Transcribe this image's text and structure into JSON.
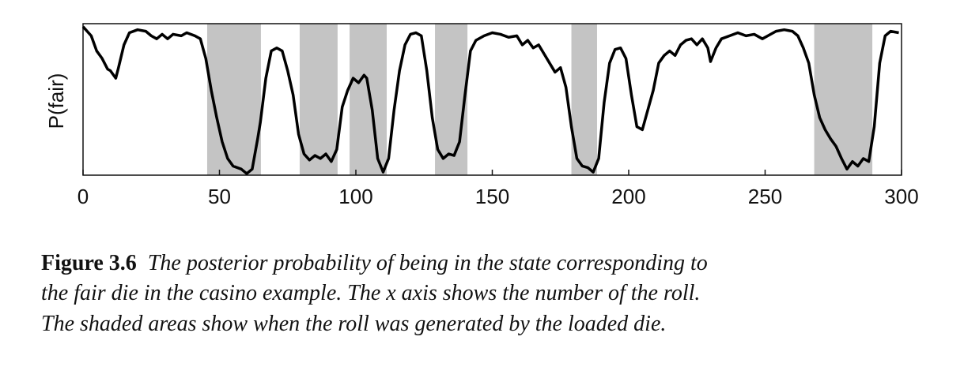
{
  "chart_data": {
    "type": "line",
    "y_label": "P(fair)",
    "xlim": [
      0,
      300
    ],
    "ylim": [
      0,
      1
    ],
    "xticks": [
      0,
      50,
      100,
      150,
      200,
      250,
      300
    ],
    "color": "#000000",
    "shade_color": "#c4c4c4",
    "shaded": [
      [
        45.5,
        65.2
      ],
      [
        79.4,
        93.3
      ],
      [
        97.7,
        111.3
      ],
      [
        129,
        140.9
      ],
      [
        179,
        188.4
      ],
      [
        268,
        289.3
      ]
    ],
    "x": [
      0,
      3,
      5,
      7,
      9,
      10,
      12,
      13,
      15,
      17,
      20,
      23,
      25,
      27,
      29,
      31,
      33,
      36,
      38,
      41,
      43,
      45,
      47,
      49,
      51,
      53,
      55,
      58,
      60,
      62,
      64,
      65,
      67,
      69,
      71,
      73,
      75,
      77,
      79,
      81,
      83,
      85,
      87,
      89,
      91,
      93,
      95,
      97,
      99,
      101,
      103,
      104,
      106,
      108,
      110,
      112,
      114,
      116,
      118,
      120,
      122,
      124,
      126,
      128,
      130,
      132,
      134,
      136,
      138,
      140,
      142,
      144,
      147,
      150,
      153,
      156,
      159,
      161,
      163,
      165,
      167,
      169,
      171,
      173,
      175,
      177,
      179,
      181,
      183,
      185,
      187,
      189,
      191,
      193,
      195,
      197,
      199,
      201,
      203,
      205,
      207,
      209,
      211,
      213,
      215,
      217,
      219,
      221,
      223,
      225,
      227,
      229,
      230,
      232,
      234,
      237,
      240,
      243,
      246,
      249,
      251,
      254,
      257,
      260,
      262,
      264,
      266,
      268,
      270,
      272,
      274,
      276,
      278,
      280,
      282,
      284,
      286,
      288,
      290,
      292,
      294,
      296,
      299
    ],
    "values": [
      0.98,
      0.92,
      0.82,
      0.77,
      0.7,
      0.69,
      0.64,
      0.71,
      0.86,
      0.94,
      0.96,
      0.95,
      0.92,
      0.9,
      0.93,
      0.9,
      0.93,
      0.92,
      0.94,
      0.92,
      0.9,
      0.77,
      0.56,
      0.38,
      0.22,
      0.11,
      0.06,
      0.04,
      0.01,
      0.04,
      0.24,
      0.35,
      0.64,
      0.82,
      0.84,
      0.82,
      0.69,
      0.53,
      0.27,
      0.14,
      0.1,
      0.13,
      0.11,
      0.14,
      0.09,
      0.17,
      0.45,
      0.56,
      0.64,
      0.61,
      0.66,
      0.64,
      0.43,
      0.11,
      0.02,
      0.11,
      0.43,
      0.69,
      0.86,
      0.93,
      0.94,
      0.92,
      0.69,
      0.38,
      0.17,
      0.11,
      0.14,
      0.13,
      0.22,
      0.53,
      0.82,
      0.89,
      0.92,
      0.94,
      0.93,
      0.91,
      0.92,
      0.86,
      0.89,
      0.84,
      0.86,
      0.8,
      0.74,
      0.68,
      0.71,
      0.58,
      0.32,
      0.11,
      0.06,
      0.05,
      0.02,
      0.11,
      0.48,
      0.74,
      0.83,
      0.84,
      0.77,
      0.53,
      0.32,
      0.3,
      0.43,
      0.56,
      0.74,
      0.79,
      0.82,
      0.79,
      0.86,
      0.89,
      0.9,
      0.86,
      0.9,
      0.84,
      0.75,
      0.84,
      0.9,
      0.92,
      0.94,
      0.92,
      0.93,
      0.9,
      0.92,
      0.95,
      0.96,
      0.95,
      0.92,
      0.84,
      0.74,
      0.53,
      0.38,
      0.3,
      0.24,
      0.19,
      0.11,
      0.04,
      0.09,
      0.06,
      0.11,
      0.09,
      0.32,
      0.74,
      0.92,
      0.95,
      0.94
    ]
  },
  "caption": {
    "label": "Figure 3.6",
    "lines": [
      "The posterior probability of being in the state corresponding to",
      "the fair die in the casino example. The x axis shows the number of the roll.",
      "The shaded areas show when the roll was generated by the loaded die."
    ]
  }
}
